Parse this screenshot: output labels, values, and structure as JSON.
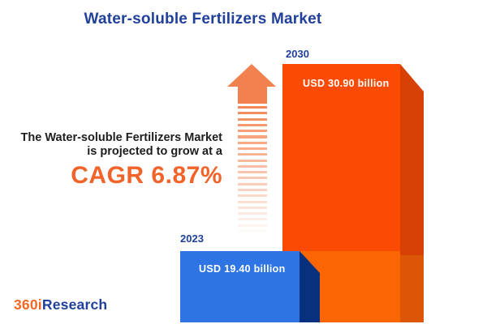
{
  "title": "Water-soluble Fertilizers Market",
  "statement": {
    "line1": "The Water-soluble Fertilizers Market",
    "line2": "is projected to grow at a",
    "cagr": "CAGR 6.87%"
  },
  "bars": [
    {
      "year": "2023",
      "value_label": "USD 19.40 billion"
    },
    {
      "year": "2030",
      "value_label": "USD 30.90 billion"
    }
  ],
  "logo": {
    "part1": "360i",
    "part2": "Research"
  },
  "arrow": {
    "dash_count": 22,
    "icon": "up-arrow-dashed"
  },
  "colors": {
    "title_blue": "#21409a",
    "body_text": "#1d1d1d",
    "cagr_orange": "#f2632a",
    "orange_top_front": "#fb4a04",
    "orange_top_side": "#d84105",
    "orange_bottom_front": "#fb6604",
    "orange_bottom_side": "#dd5506",
    "blue_front": "#2e74e4",
    "blue_side": "#07307f",
    "arrow_color": "#f1824f",
    "logo_orange": "#f26824",
    "logo_blue": "#21409a"
  },
  "chart_data": {
    "type": "bar",
    "title": "Water-soluble Fertilizers Market",
    "categories": [
      "2023",
      "2030"
    ],
    "values": [
      19.4,
      30.9
    ],
    "unit": "USD billion",
    "value_labels": [
      "USD 19.40 billion",
      "USD 30.90 billion"
    ],
    "growth_cagr_percent": 6.87,
    "annotations": [
      "The Water-soluble Fertilizers Market is projected to grow at a CAGR 6.87%"
    ],
    "legend": "none",
    "grid": false,
    "orientation": "vertical",
    "style": "3d-infographic-bars"
  }
}
